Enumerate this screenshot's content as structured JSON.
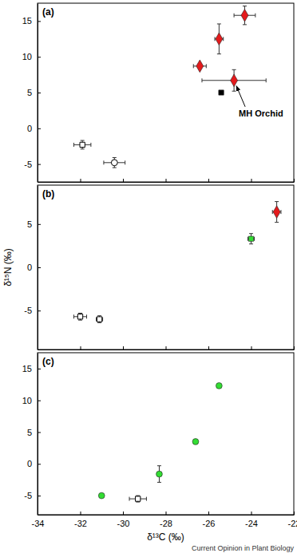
{
  "chart_data": [
    {
      "type": "scatter",
      "title": "(a)",
      "xlim": [
        -34,
        -22
      ],
      "xticks": [
        -34,
        -32,
        -30,
        -28,
        -26,
        -24,
        -22
      ],
      "ylim": [
        -7.5,
        17.5
      ],
      "yticks": [
        -5,
        0,
        5,
        10,
        15
      ],
      "tick_labels": "y",
      "series": [
        {
          "color": "#000000",
          "marker": "open-square",
          "x": [
            -31.9
          ],
          "values": [
            -2.3
          ],
          "x_error": [
            0.4
          ],
          "y_error": [
            0.6
          ]
        },
        {
          "color": "#000000",
          "marker": "open-circle",
          "x": [
            -30.4
          ],
          "values": [
            -4.8
          ],
          "x_error": [
            0.5
          ],
          "y_error": [
            0.7
          ]
        },
        {
          "color": "#000000",
          "marker": "square",
          "x": [
            -25.4
          ],
          "values": [
            5.0
          ],
          "x_error": [
            0.1
          ],
          "y_error": [
            0.2
          ]
        },
        {
          "color": "#e41a1c",
          "marker": "diamond",
          "x": [
            -26.4,
            -25.5,
            -24.3,
            -24.8
          ],
          "values": [
            8.7,
            12.5,
            15.8,
            6.7
          ],
          "x_error": [
            0.3,
            0.2,
            0.5,
            1.5
          ],
          "y_error": [
            0.3,
            2.1,
            1.3,
            1.5
          ]
        }
      ],
      "annotations": [
        {
          "text": "MH Orchid",
          "x": -24.8,
          "y": 6.7
        }
      ]
    },
    {
      "type": "scatter",
      "title": "(b)",
      "xlim": [
        -34,
        -22
      ],
      "xticks": [
        -34,
        -32,
        -30,
        -28,
        -26,
        -24,
        -22
      ],
      "ylim": [
        -9.5,
        9.5
      ],
      "yticks": [
        -5,
        0,
        5
      ],
      "y_label": "δ¹⁵N (‰)",
      "tick_labels": "y",
      "series": [
        {
          "color": "#000000",
          "marker": "open-square",
          "x": [
            -32.0,
            -31.1
          ],
          "values": [
            -5.7,
            -6.0
          ],
          "x_error": [
            0.3,
            0.15
          ],
          "y_error": [
            0.4,
            0.4
          ]
        },
        {
          "color": "#33dd33",
          "marker": "square",
          "x": [
            -24.0
          ],
          "values": [
            3.3
          ],
          "x_error": [
            0.15
          ],
          "y_error": [
            0.6
          ]
        },
        {
          "color": "#e41a1c",
          "marker": "diamond",
          "x": [
            -22.8
          ],
          "values": [
            6.4
          ],
          "x_error": [
            0.2
          ],
          "y_error": [
            1.2
          ]
        }
      ]
    },
    {
      "type": "scatter",
      "title": "(c)",
      "xlim": [
        -34,
        -22
      ],
      "xticks": [
        -34,
        -32,
        -30,
        -28,
        -26,
        -24,
        -22
      ],
      "ylim": [
        -8,
        17.5
      ],
      "yticks": [
        -5,
        0,
        5,
        10,
        15
      ],
      "x_label": "δ¹³C (‰)",
      "series": [
        {
          "color": "#33dd33",
          "marker": "circle",
          "x": [
            -31.0,
            -28.3,
            -26.6,
            -25.5
          ],
          "values": [
            -5.0,
            -1.6,
            3.5,
            12.3
          ],
          "x_error": [
            0,
            0.1,
            0,
            0
          ],
          "y_error": [
            0,
            1.3,
            0,
            0
          ]
        },
        {
          "color": "#000000",
          "marker": "open-square",
          "x": [
            -29.3
          ],
          "values": [
            -5.5
          ],
          "x_error": [
            0.4
          ],
          "y_error": [
            0.5
          ]
        }
      ]
    }
  ],
  "source": "Current Opinion in Plant Biology"
}
